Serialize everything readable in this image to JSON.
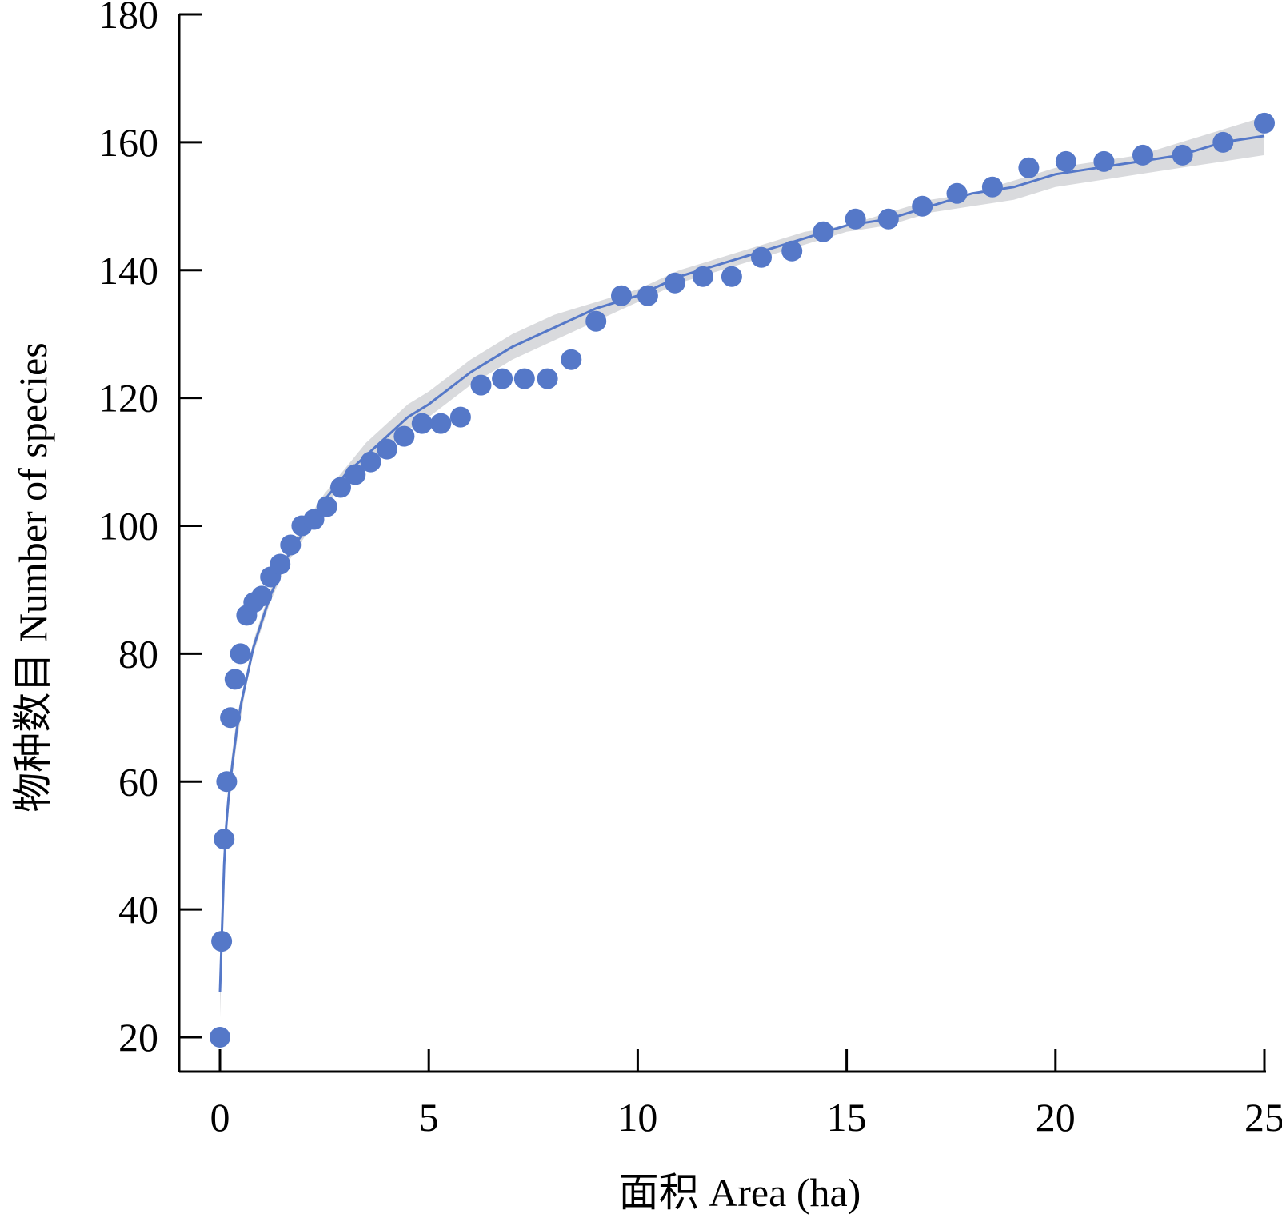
{
  "chart_data": {
    "type": "scatter",
    "xlabel": "面积 Area (ha)",
    "ylabel": "物种数目 Number of species",
    "xlim": [
      -1,
      25
    ],
    "ylim": [
      14,
      180
    ],
    "xticks": [
      "0",
      "5",
      "10",
      "15",
      "20",
      "25"
    ],
    "yticks": [
      "20",
      "40",
      "60",
      "80",
      "100",
      "120",
      "140",
      "160",
      "180"
    ],
    "grid": false,
    "legend": "none",
    "colors": {
      "points": "#5578c8",
      "fit_line": "#5578c8",
      "confidence_band": "#d9dadd",
      "axis": "#000000"
    },
    "points": [
      {
        "x": 0.0,
        "y": 20
      },
      {
        "x": 0.04,
        "y": 35
      },
      {
        "x": 0.1,
        "y": 51
      },
      {
        "x": 0.16,
        "y": 60
      },
      {
        "x": 0.25,
        "y": 70
      },
      {
        "x": 0.36,
        "y": 76
      },
      {
        "x": 0.49,
        "y": 80
      },
      {
        "x": 0.64,
        "y": 86
      },
      {
        "x": 0.81,
        "y": 88
      },
      {
        "x": 1.0,
        "y": 89
      },
      {
        "x": 1.21,
        "y": 92
      },
      {
        "x": 1.44,
        "y": 94
      },
      {
        "x": 1.69,
        "y": 97
      },
      {
        "x": 1.96,
        "y": 100
      },
      {
        "x": 2.25,
        "y": 101
      },
      {
        "x": 2.56,
        "y": 103
      },
      {
        "x": 2.89,
        "y": 106
      },
      {
        "x": 3.24,
        "y": 108
      },
      {
        "x": 3.61,
        "y": 110
      },
      {
        "x": 4.0,
        "y": 112
      },
      {
        "x": 4.41,
        "y": 114
      },
      {
        "x": 4.84,
        "y": 116
      },
      {
        "x": 5.29,
        "y": 116
      },
      {
        "x": 5.76,
        "y": 117
      },
      {
        "x": 6.25,
        "y": 122
      },
      {
        "x": 6.76,
        "y": 123
      },
      {
        "x": 7.29,
        "y": 123
      },
      {
        "x": 7.84,
        "y": 123
      },
      {
        "x": 8.41,
        "y": 126
      },
      {
        "x": 9.0,
        "y": 132
      },
      {
        "x": 9.61,
        "y": 136
      },
      {
        "x": 10.24,
        "y": 136
      },
      {
        "x": 10.89,
        "y": 138
      },
      {
        "x": 11.56,
        "y": 139
      },
      {
        "x": 12.25,
        "y": 139
      },
      {
        "x": 12.96,
        "y": 142
      },
      {
        "x": 13.69,
        "y": 143
      },
      {
        "x": 14.44,
        "y": 146
      },
      {
        "x": 15.21,
        "y": 148
      },
      {
        "x": 16.0,
        "y": 148
      },
      {
        "x": 16.81,
        "y": 150
      },
      {
        "x": 17.64,
        "y": 152
      },
      {
        "x": 18.49,
        "y": 153
      },
      {
        "x": 19.36,
        "y": 156
      },
      {
        "x": 20.25,
        "y": 157
      },
      {
        "x": 21.16,
        "y": 157
      },
      {
        "x": 22.09,
        "y": 158
      },
      {
        "x": 23.04,
        "y": 158
      },
      {
        "x": 24.01,
        "y": 160
      },
      {
        "x": 25.0,
        "y": 163
      }
    ],
    "fit": {
      "model": "power",
      "x": [
        0.0,
        0.05,
        0.1,
        0.15,
        0.2,
        0.3,
        0.4,
        0.5,
        0.6,
        0.7,
        0.8,
        0.9,
        1.0,
        1.2,
        1.4,
        1.6,
        1.8,
        2.0,
        2.5,
        3.0,
        3.5,
        4.0,
        4.5,
        5.0,
        6.0,
        7.0,
        8.0,
        9.0,
        10.0,
        11.0,
        12.0,
        13.0,
        14.0,
        15.0,
        16.0,
        17.0,
        18.0,
        19.0,
        20.0,
        21.0,
        22.0,
        23.0,
        24.0,
        25.0
      ],
      "y": [
        27,
        37,
        47,
        53,
        57,
        63,
        68,
        72,
        75,
        78,
        81,
        83,
        85,
        89,
        92,
        95,
        97,
        99,
        104,
        108,
        111,
        114,
        117,
        119,
        124,
        128,
        131,
        134,
        136,
        139,
        141,
        143,
        145,
        147,
        148,
        150,
        152,
        153,
        155,
        156,
        157,
        158,
        160,
        161
      ],
      "band_upper": [
        31,
        40,
        49,
        55,
        59,
        65,
        70,
        73,
        76,
        79,
        82,
        84,
        86,
        90,
        93,
        96,
        98,
        100,
        105,
        109,
        113,
        116,
        119,
        121,
        126,
        130,
        133,
        135,
        137,
        140,
        142,
        144,
        146,
        147,
        149,
        151,
        152,
        154,
        156,
        157,
        158,
        160,
        162,
        164
      ],
      "band_lower": [
        23,
        34,
        45,
        51,
        55,
        61,
        66,
        70,
        74,
        77,
        80,
        82,
        84,
        88,
        91,
        94,
        96,
        98,
        103,
        107,
        109,
        112,
        115,
        117,
        122,
        126,
        129,
        132,
        135,
        138,
        140,
        142,
        144,
        146,
        147,
        149,
        150,
        151,
        153,
        154,
        155,
        156,
        157,
        158
      ]
    }
  }
}
